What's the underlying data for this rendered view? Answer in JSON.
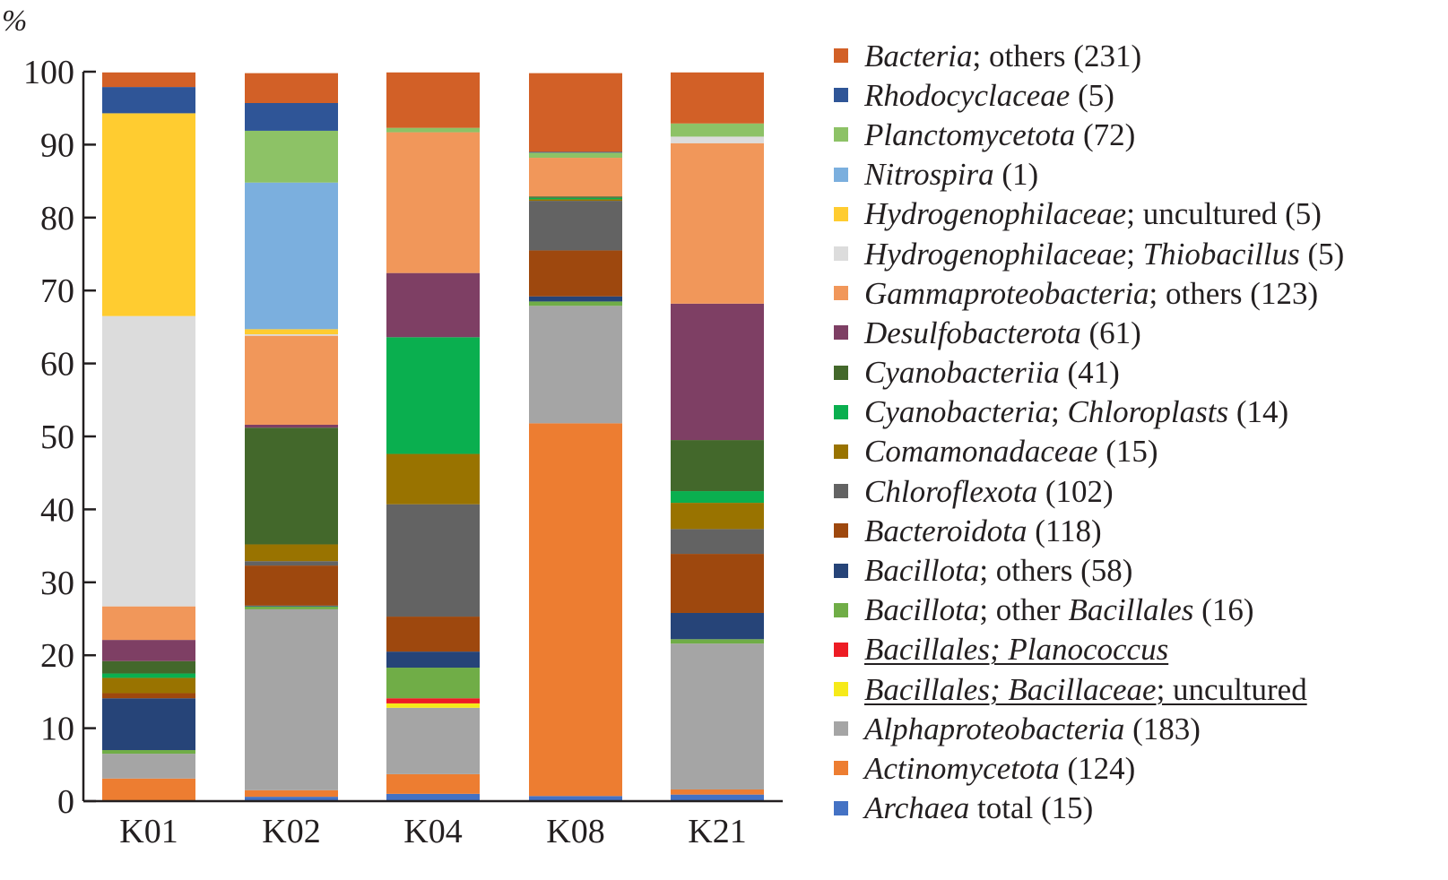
{
  "chart_data": {
    "type": "bar",
    "stacked": true,
    "title": "",
    "xlabel": "",
    "ylabel": "%",
    "ylim": [
      0,
      100
    ],
    "yticks": [
      0,
      10,
      20,
      30,
      40,
      50,
      60,
      70,
      80,
      90,
      100
    ],
    "grid": false,
    "legend_position": "right",
    "categories": [
      "K01",
      "K02",
      "K04",
      "K08",
      "K21"
    ],
    "series": [
      {
        "key": "archaea",
        "name": "Archaea total (15)",
        "color": "#4472c4",
        "values": [
          0.0,
          0.6,
          1.0,
          0.7,
          0.9
        ]
      },
      {
        "key": "actinomycetota",
        "name": "Actinomycetota (124)",
        "color": "#ed7d31",
        "values": [
          3.1,
          0.9,
          2.7,
          51.1,
          0.7
        ]
      },
      {
        "key": "alphaproteobacteria",
        "name": "Alphaproteobacteria (183)",
        "color": "#a5a5a5",
        "values": [
          3.4,
          24.8,
          9.1,
          16.1,
          20.0
        ]
      },
      {
        "key": "bacillaceae_uncultured",
        "name": "Bacillales; Bacillaceae; uncultured",
        "color": "#f6ea19",
        "values": [
          0.0,
          0.0,
          0.6,
          0.0,
          0.0
        ]
      },
      {
        "key": "planococcus",
        "name": "Bacillales; Planococcus",
        "color": "#ed1c24",
        "values": [
          0.0,
          0.0,
          0.7,
          0.0,
          0.0
        ]
      },
      {
        "key": "bacillota_other_bacillales",
        "name": "Bacillota; other Bacillales (16)",
        "color": "#70ad47",
        "values": [
          0.5,
          0.4,
          4.2,
          0.6,
          0.6
        ]
      },
      {
        "key": "bacillota_others",
        "name": "Bacillota; others (58)",
        "color": "#264478",
        "values": [
          7.1,
          0.1,
          2.2,
          0.7,
          3.6
        ]
      },
      {
        "key": "bacteroidota",
        "name": "Bacteroidota (118)",
        "color": "#9e480e",
        "values": [
          0.7,
          5.5,
          4.8,
          6.3,
          8.1
        ]
      },
      {
        "key": "chloroflexota",
        "name": "Chloroflexota (102)",
        "color": "#636363",
        "values": [
          0.0,
          0.6,
          15.4,
          6.8,
          3.4
        ]
      },
      {
        "key": "comamonadaceae",
        "name": "Comamonadaceae (15)",
        "color": "#997300",
        "values": [
          2.1,
          2.3,
          6.9,
          0.2,
          3.6
        ]
      },
      {
        "key": "chloroplasts",
        "name": "Cyanobacteria; Chloroplasts (14)",
        "color": "#0aaf4f",
        "values": [
          0.6,
          0.0,
          16.0,
          0.2,
          1.6
        ]
      },
      {
        "key": "cyanobacteriia",
        "name": "Cyanobacteriia (41)",
        "color": "#43682b",
        "values": [
          1.7,
          16.0,
          0.0,
          0.2,
          7.0
        ]
      },
      {
        "key": "desulfobacterota",
        "name": "Desulfobacterota (61)",
        "color": "#7e3f64",
        "values": [
          2.9,
          0.4,
          8.8,
          0.0,
          18.7
        ]
      },
      {
        "key": "gammaproteobacteria",
        "name": "Gammaproteobacteria; others (123)",
        "color": "#f1975a",
        "values": [
          4.6,
          12.2,
          19.3,
          5.3,
          22.0
        ]
      },
      {
        "key": "thiobacillus",
        "name": "Hydrogenophilaceae; Thiobacillus (5)",
        "color": "#dcdcdc",
        "values": [
          39.8,
          0.2,
          0.0,
          0.0,
          0.9
        ]
      },
      {
        "key": "hydro_uncultured",
        "name": "Hydrogenophilaceae; uncultured (5)",
        "color": "#ffcc30",
        "values": [
          27.8,
          0.7,
          0.0,
          0.0,
          0.0
        ]
      },
      {
        "key": "nitrospira",
        "name": "Nitrospira (1)",
        "color": "#7bafde",
        "values": [
          0.0,
          20.1,
          0.0,
          0.0,
          0.0
        ]
      },
      {
        "key": "planctomycetota",
        "name": "Planctomycetota (72)",
        "color": "#8dc266",
        "values": [
          0.0,
          7.1,
          0.6,
          0.7,
          1.8
        ]
      },
      {
        "key": "rhodocyclaceae",
        "name": "Rhodocyclaceae (5)",
        "color": "#2f5597",
        "values": [
          3.6,
          3.8,
          0.0,
          0.1,
          0.0
        ]
      },
      {
        "key": "bacteria_others",
        "name": "Bacteria; others (231)",
        "color": "#d26027",
        "values": [
          2.0,
          4.1,
          7.6,
          10.8,
          7.0
        ]
      }
    ]
  },
  "axis": {
    "unit_label": "%",
    "ticks": [
      "0",
      "10",
      "20",
      "30",
      "40",
      "50",
      "60",
      "70",
      "80",
      "90",
      "100"
    ]
  },
  "legend": {
    "items": [
      {
        "parts": [
          {
            "t": "Bacteria",
            "i": true
          },
          {
            "t": "; others (231)",
            "i": false
          }
        ],
        "color": "#d26027",
        "underline": false
      },
      {
        "parts": [
          {
            "t": "Rhodocyclaceae",
            "i": true
          },
          {
            "t": " (5)",
            "i": false
          }
        ],
        "color": "#2f5597",
        "underline": false
      },
      {
        "parts": [
          {
            "t": "Planctomycetota",
            "i": true
          },
          {
            "t": " (72)",
            "i": false
          }
        ],
        "color": "#8dc266",
        "underline": false
      },
      {
        "parts": [
          {
            "t": "Nitrospira",
            "i": true
          },
          {
            "t": " (1)",
            "i": false
          }
        ],
        "color": "#7bafde",
        "underline": false
      },
      {
        "parts": [
          {
            "t": "Hydrogenophilaceae",
            "i": true
          },
          {
            "t": "; uncultured (5)",
            "i": false
          }
        ],
        "color": "#ffcc30",
        "underline": false
      },
      {
        "parts": [
          {
            "t": "Hydrogenophilaceae",
            "i": true
          },
          {
            "t": "; ",
            "i": false
          },
          {
            "t": "Thiobacillus",
            "i": true
          },
          {
            "t": " (5)",
            "i": false
          }
        ],
        "color": "#dcdcdc",
        "underline": false
      },
      {
        "parts": [
          {
            "t": "Gammaproteobacteria",
            "i": true
          },
          {
            "t": "; others (123)",
            "i": false
          }
        ],
        "color": "#f1975a",
        "underline": false
      },
      {
        "parts": [
          {
            "t": "Desulfobacterota",
            "i": true
          },
          {
            "t": " (61)",
            "i": false
          }
        ],
        "color": "#7e3f64",
        "underline": false
      },
      {
        "parts": [
          {
            "t": "Cyanobacteriia",
            "i": true
          },
          {
            "t": " (41)",
            "i": false
          }
        ],
        "color": "#43682b",
        "underline": false
      },
      {
        "parts": [
          {
            "t": "Cyanobacteria",
            "i": true
          },
          {
            "t": "; ",
            "i": false
          },
          {
            "t": "Chloroplasts",
            "i": true
          },
          {
            "t": " (14)",
            "i": false
          }
        ],
        "color": "#0aaf4f",
        "underline": false
      },
      {
        "parts": [
          {
            "t": "Comamonadaceae",
            "i": true
          },
          {
            "t": " (15)",
            "i": false
          }
        ],
        "color": "#997300",
        "underline": false
      },
      {
        "parts": [
          {
            "t": "Chloroflexota",
            "i": true
          },
          {
            "t": " (102)",
            "i": false
          }
        ],
        "color": "#636363",
        "underline": false
      },
      {
        "parts": [
          {
            "t": "Bacteroidota",
            "i": true
          },
          {
            "t": " (118)",
            "i": false
          }
        ],
        "color": "#9e480e",
        "underline": false
      },
      {
        "parts": [
          {
            "t": "Bacillota",
            "i": true
          },
          {
            "t": "; others (58)",
            "i": false
          }
        ],
        "color": "#264478",
        "underline": false
      },
      {
        "parts": [
          {
            "t": "Bacillota",
            "i": true
          },
          {
            "t": "; other  ",
            "i": false
          },
          {
            "t": "Bacillales",
            "i": true
          },
          {
            "t": " (16)",
            "i": false
          }
        ],
        "color": "#70ad47",
        "underline": false
      },
      {
        "parts": [
          {
            "t": "Bacillales; Planococcus",
            "i": true
          }
        ],
        "color": "#ed1c24",
        "underline": true
      },
      {
        "parts": [
          {
            "t": "Bacillales; Bacillaceae",
            "i": true
          },
          {
            "t": "; uncultured",
            "i": false
          }
        ],
        "color": "#f6ea19",
        "underline": true
      },
      {
        "parts": [
          {
            "t": "Alphaproteobacteria",
            "i": true
          },
          {
            "t": " (183)",
            "i": false
          }
        ],
        "color": "#a5a5a5",
        "underline": false
      },
      {
        "parts": [
          {
            "t": "Actinomycetota",
            "i": true
          },
          {
            "t": " (124)",
            "i": false
          }
        ],
        "color": "#ed7d31",
        "underline": false
      },
      {
        "parts": [
          {
            "t": "Archaea",
            "i": true
          },
          {
            "t": " total (15)",
            "i": false
          }
        ],
        "color": "#4472c4",
        "underline": false
      }
    ]
  }
}
